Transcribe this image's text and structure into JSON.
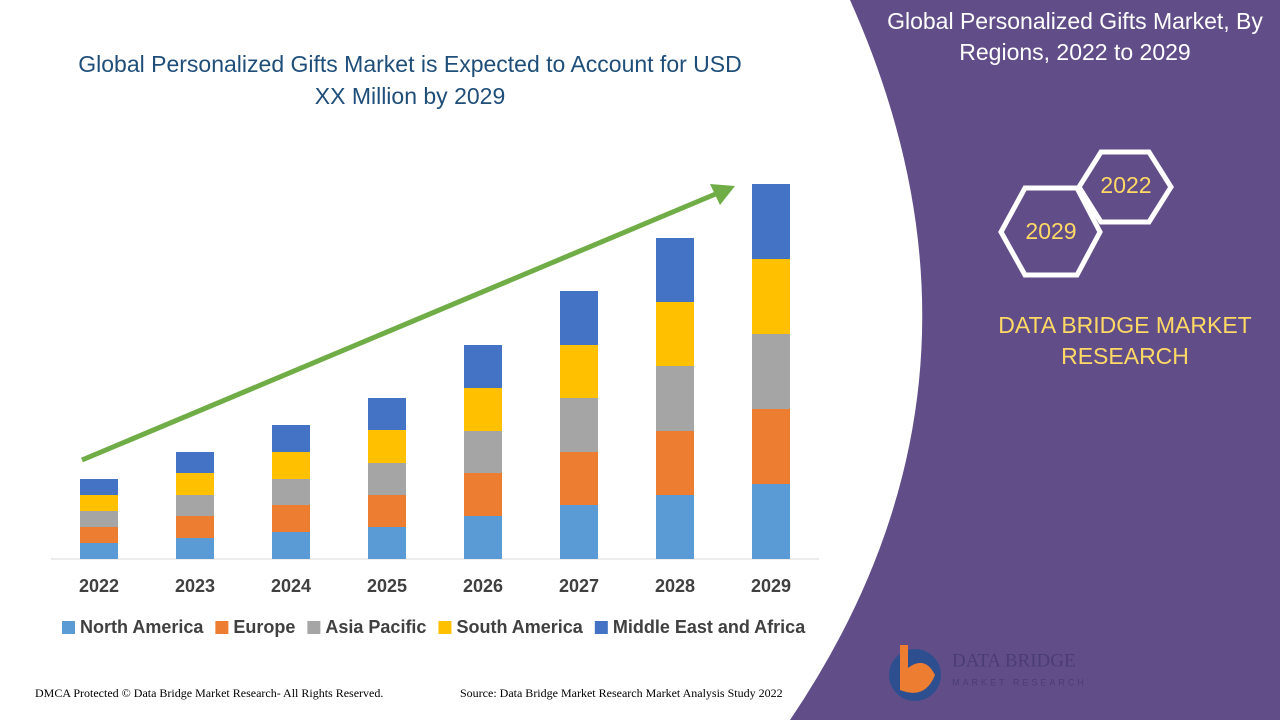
{
  "chart_data": {
    "type": "stacked_bar",
    "title": "Global Personalized Gifts Market is Expected to Account for USD XX Million by 2029",
    "categories": [
      "2022",
      "2023",
      "2024",
      "2025",
      "2026",
      "2027",
      "2028",
      "2029"
    ],
    "series": [
      {
        "name": "North America",
        "color": "#5b9bd5",
        "values": [
          16,
          21,
          27,
          32,
          43,
          54,
          64,
          75
        ]
      },
      {
        "name": "Europe",
        "color": "#ed7d31",
        "values": [
          16,
          22,
          27,
          32,
          43,
          53,
          64,
          75
        ]
      },
      {
        "name": "Asia Pacific",
        "color": "#a5a5a5",
        "values": [
          16,
          21,
          26,
          32,
          42,
          54,
          65,
          75
        ]
      },
      {
        "name": "South America",
        "color": "#ffc000",
        "values": [
          16,
          22,
          27,
          33,
          43,
          53,
          64,
          75
        ]
      },
      {
        "name": "Middle East and Africa",
        "color": "#4472c4",
        "values": [
          16,
          21,
          27,
          32,
          43,
          54,
          64,
          75
        ]
      }
    ],
    "ylim": [
      0,
      400
    ]
  },
  "panel": {
    "title": "Global Personalized Gifts Market, By Regions, 2022 to 2029",
    "hex_top": "2022",
    "hex_bottom": "2029",
    "brand": "DATA BRIDGE MARKET RESEARCH",
    "logo_main": "DATA BRIDGE",
    "logo_sub": "MARKET RESEARCH"
  },
  "footer": {
    "left": "DMCA Protected © Data Bridge Market Research- All Rights Reserved.",
    "source": "Source: Data Bridge Market Research Market Analysis Study 2022"
  }
}
